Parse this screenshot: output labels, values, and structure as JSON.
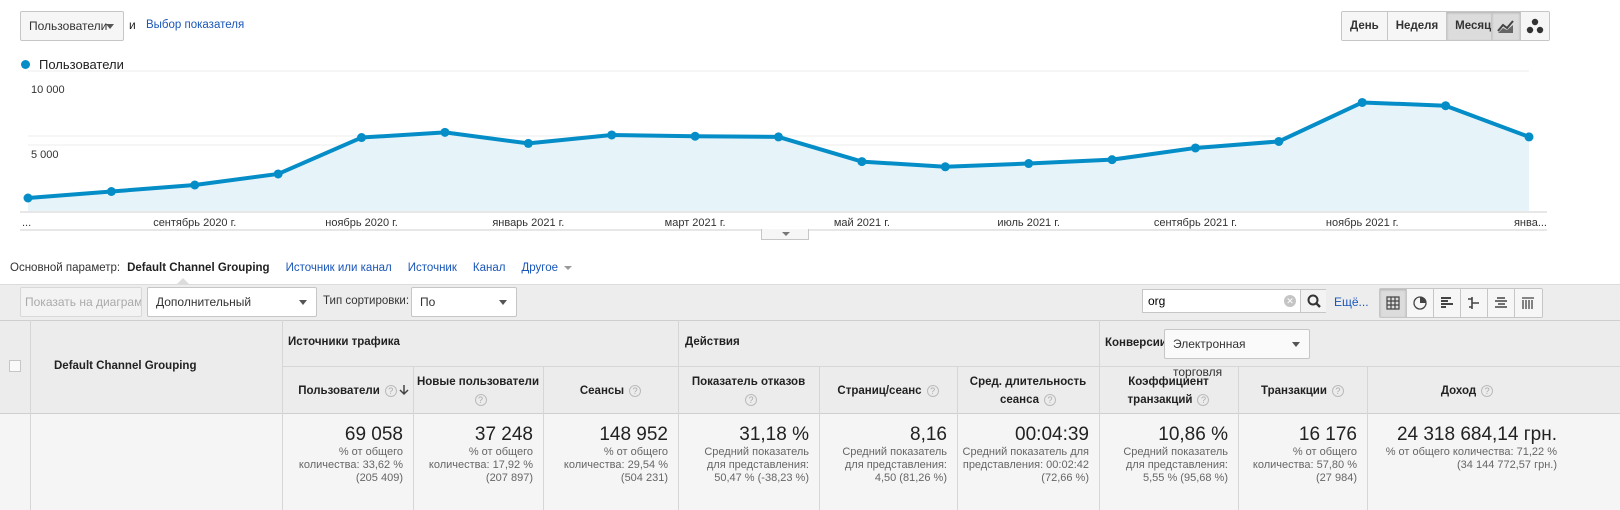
{
  "top": {
    "metric_select": "Пользователи",
    "and_label": "и",
    "metric_link": "Выбор показателя",
    "periods": [
      {
        "label": "День",
        "active": false
      },
      {
        "label": "Неделя",
        "active": false
      },
      {
        "label": "Месяц",
        "active": true
      }
    ],
    "chart_type_icons": [
      "line-chart-icon",
      "motion-chart-icon"
    ]
  },
  "chart_legend": "Пользователи",
  "chart_data": {
    "type": "area",
    "series": [
      {
        "name": "Пользователи",
        "values": [
          1000,
          1500,
          2000,
          2850,
          5650,
          6050,
          5200,
          5850,
          5750,
          5700,
          3800,
          3400,
          3650,
          3950,
          4850,
          5350,
          8350,
          8100,
          5700
        ]
      }
    ],
    "ylim": [
      0,
      10000
    ],
    "yticks": [
      "10 000",
      "5 000"
    ],
    "xtick_labels": [
      "...",
      "сентябрь 2020 г.",
      "ноябрь 2020 г.",
      "январь 2021 г.",
      "март 2021 г.",
      "май 2021 г.",
      "июль 2021 г.",
      "сентябрь 2021 г.",
      "ноябрь 2021 г.",
      "янва..."
    ],
    "xtick_index": [
      0,
      2,
      4,
      6,
      8,
      10,
      12,
      14,
      16,
      18
    ],
    "color": "#058dc7",
    "fill": "#e6f3f9"
  },
  "dims": {
    "label": "Основной параметр:",
    "active": "Default Channel Grouping",
    "links": [
      "Источник или канал",
      "Источник",
      "Канал"
    ],
    "other": "Другое"
  },
  "toolbar": {
    "show_on_chart": "Показать на диаграмме",
    "secondary": "Дополнительный параметр",
    "sort_label": "Тип сортировки:",
    "sort_value": "По умолчанию",
    "search_value": "org",
    "more": "Ещё...",
    "view_icons": [
      "table-view-icon",
      "pie-view-icon",
      "bar-view-icon",
      "comparison-view-icon",
      "term-cloud-view-icon",
      "pivot-view-icon"
    ]
  },
  "table": {
    "dim_header": "Default Channel Grouping",
    "group_traffic": "Источники трафика",
    "group_actions": "Действия",
    "group_conv": "Конверсии",
    "conv_select": "Электронная торговля",
    "columns": [
      {
        "l1": "Пользователи",
        "l2": "",
        "value": "69 058",
        "s1": "% от общего",
        "s2": "количества: 33,62 %",
        "s3": "(205 409)"
      },
      {
        "l1": "Новые пользователи",
        "l2": "",
        "value": "37 248",
        "s1": "% от общего",
        "s2": "количества: 17,92 %",
        "s3": "(207 897)"
      },
      {
        "l1": "Сеансы",
        "l2": "",
        "value": "148 952",
        "s1": "% от общего",
        "s2": "количества: 29,54 %",
        "s3": "(504 231)"
      },
      {
        "l1": "Показатель отказов",
        "l2": "",
        "value": "31,18 %",
        "s1": "Средний показатель",
        "s2": "для представления:",
        "s3": "50,47 % (-38,23 %)"
      },
      {
        "l1": "Страниц/сеанс",
        "l2": "",
        "value": "8,16",
        "s1": "Средний показатель",
        "s2": "для представления:",
        "s3": "4,50 (81,26 %)"
      },
      {
        "l1": "Сред. длительность",
        "l2": "сеанса",
        "value": "00:04:39",
        "s1": "Средний показатель для",
        "s2": "представления: 00:02:42",
        "s3": "(72,66 %)"
      },
      {
        "l1": "Коэффициент",
        "l2": "транзакций",
        "value": "10,86 %",
        "s1": "Средний показатель",
        "s2": "для представления:",
        "s3": "5,55 % (95,68 %)"
      },
      {
        "l1": "Транзакции",
        "l2": "",
        "value": "16 176",
        "s1": "% от общего",
        "s2": "количества: 57,80 %",
        "s3": "(27 984)"
      },
      {
        "l1": "Доход",
        "l2": "",
        "value": "24 318 684,14 грн.",
        "s1": "% от общего количества: 71,22 %",
        "s2": "(34 144 772,57 грн.)",
        "s3": ""
      }
    ]
  }
}
